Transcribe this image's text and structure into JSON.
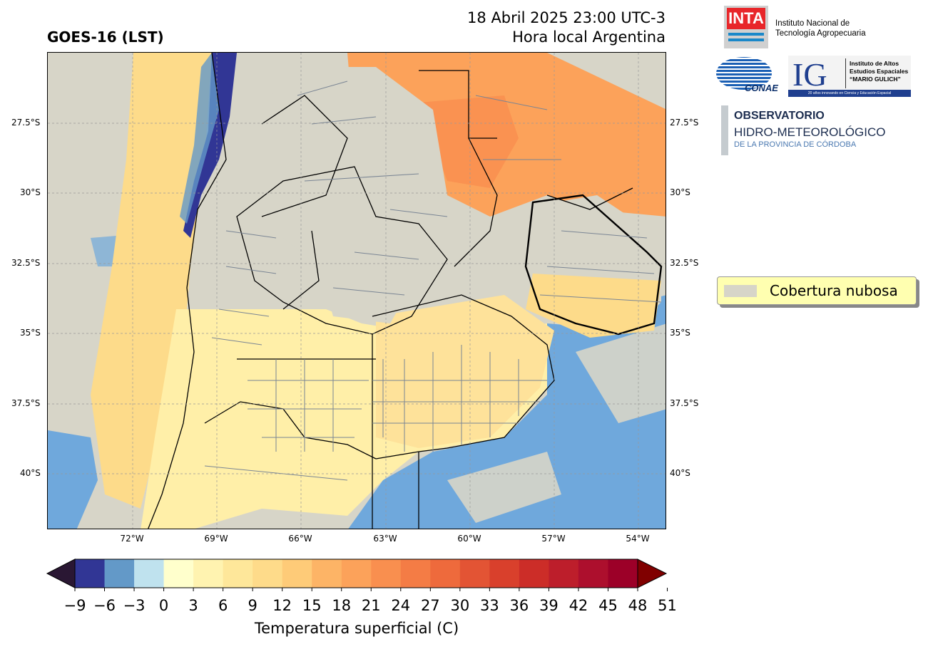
{
  "header": {
    "product": "GOES-16 (LST)",
    "datetime": "18 Abril 2025 23:00 UTC-3",
    "local_time": "Hora local Argentina"
  },
  "map": {
    "lat_ticks": [
      "27.5°S",
      "30°S",
      "32.5°S",
      "35°S",
      "37.5°S",
      "40°S"
    ],
    "lon_ticks": [
      "72°W",
      "69°W",
      "66°W",
      "63°W",
      "60°W",
      "57°W",
      "54°W"
    ],
    "cloud_color": "#d7d5c8",
    "ocean_color": "#6fa8dc"
  },
  "legend": {
    "cloud_label": "Cobertura nubosa"
  },
  "logos": {
    "inta_mark": "INTA",
    "inta_name": [
      "Instituto Nacional de",
      "Tecnología Agropecuaria"
    ],
    "conae_mark": "CONAE",
    "ig_mark": "IG",
    "ig_name": [
      "Instituto de Altos",
      "Estudios Espaciales",
      "“MARIO GULICH”"
    ],
    "ig_tagline": "20 años innovando en Ciencia y Educación Espacial",
    "obs_line1": "OBSERVATORIO",
    "obs_line2": "HIDRO-METEOROLÓGICO",
    "obs_line3": "DE LA PROVINCIA DE CÓRDOBA"
  },
  "colorbar": {
    "title": "Temperatura superficial (C)",
    "ticks": [
      "−9",
      "−6",
      "−3",
      "0",
      "3",
      "6",
      "9",
      "12",
      "15",
      "18",
      "21",
      "24",
      "27",
      "30",
      "33",
      "36",
      "39",
      "42",
      "45",
      "48",
      "51"
    ],
    "colors": [
      "#313695",
      "#6399c8",
      "#bfe2ee",
      "#ffffcc",
      "#fff3b0",
      "#fee79a",
      "#fedb8a",
      "#fecb78",
      "#fdb466",
      "#fca25a",
      "#f98f4f",
      "#f47c45",
      "#ee6a3c",
      "#e35434",
      "#d9402c",
      "#cc2d28",
      "#bd1e2b",
      "#ad0f2d",
      "#9c0028"
    ],
    "under_color": "#2a1733",
    "over_color": "#800000"
  }
}
